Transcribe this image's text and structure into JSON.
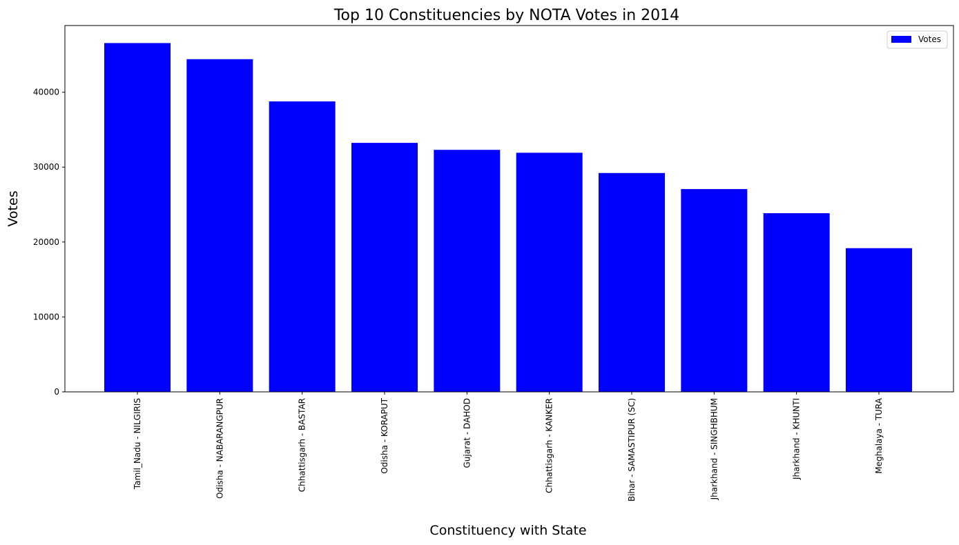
{
  "chart_data": {
    "type": "bar",
    "title": "Top 10 Constituencies by NOTA Votes in 2014",
    "xlabel": "Constituency with State",
    "ylabel": "Votes",
    "categories": [
      "Tamil_Nadu - NILGIRIS",
      "Odisha - NABARANGPUR",
      "Chhattisgarh - BASTAR",
      "Odisha - KORAPUT",
      "Gujarat - DAHOD",
      "Chhattisgarh - KANKER",
      "Bihar - SAMASTIPUR (SC)",
      "Jharkhand - SINGHBHUM",
      "Jharkhand - KHUNTI",
      "Meghalaya - TURA"
    ],
    "series": [
      {
        "name": "Votes",
        "color": "#0000ff",
        "values": [
          46559,
          44408,
          38772,
          33236,
          32305,
          31917,
          29211,
          27068,
          23846,
          19179
        ]
      }
    ],
    "yticks": [
      0,
      10000,
      20000,
      30000,
      40000
    ],
    "ylim": [
      0,
      48900
    ],
    "legend": {
      "position": "top-right",
      "entries": [
        "Votes"
      ]
    },
    "grid": false
  }
}
